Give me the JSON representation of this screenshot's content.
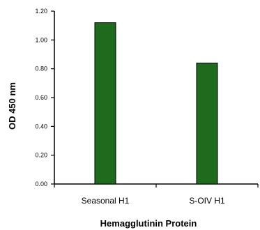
{
  "chart_data": {
    "type": "bar",
    "title": "",
    "xlabel": "Hemagglutinin Protein",
    "ylabel": "OD 450 nm",
    "categories": [
      "Seasonal H1",
      "S-OIV H1"
    ],
    "values": [
      1.12,
      0.84
    ],
    "ylim": [
      0,
      1.2
    ],
    "yticks": [
      "0.00",
      "0.20",
      "0.40",
      "0.60",
      "0.80",
      "1.00",
      "1.20"
    ],
    "bar_color": "#1e6b1e",
    "bar_edge_color": "#000000",
    "grid": false,
    "legend": "none"
  }
}
